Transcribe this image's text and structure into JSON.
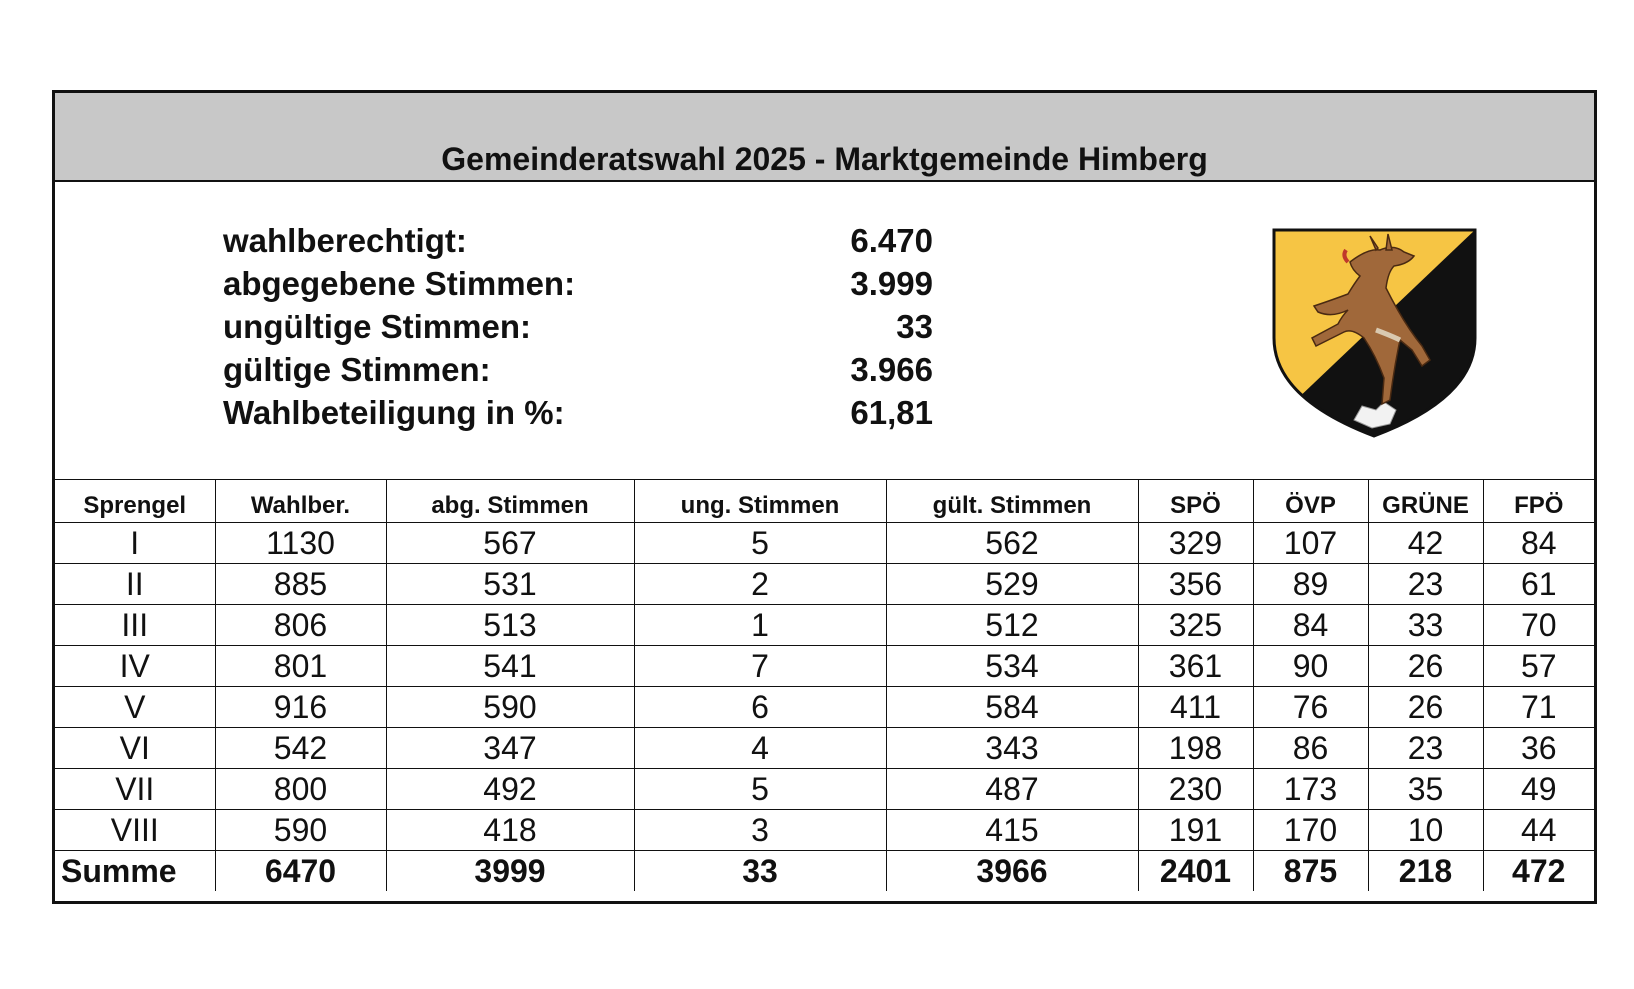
{
  "title": "Gemeinderatswahl 2025 -  Marktgemeinde Himberg",
  "summary": [
    {
      "label": "wahlberechtigt:",
      "value": "6.470"
    },
    {
      "label": "abgegebene Stimmen:",
      "value": "3.999"
    },
    {
      "label": "ungültige Stimmen:",
      "value": "33"
    },
    {
      "label": "gültige Stimmen:",
      "value": "3.966"
    },
    {
      "label": "Wahlbeteiligung in %:",
      "value": "61,81"
    }
  ],
  "crest": {
    "icon": "himberg-coat-of-arms-icon",
    "colors": {
      "field_top": "#f6c544",
      "field_bottom": "#111111",
      "animal": "#a0683a"
    }
  },
  "table": {
    "headers": [
      "Sprengel",
      "Wahlber.",
      "abg. Stimmen",
      "ung. Stimmen",
      "gült. Stimmen",
      "SPÖ",
      "ÖVP",
      "GRÜNE",
      "FPÖ"
    ],
    "rows": [
      [
        "I",
        "1130",
        "567",
        "5",
        "562",
        "329",
        "107",
        "42",
        "84"
      ],
      [
        "II",
        "885",
        "531",
        "2",
        "529",
        "356",
        "89",
        "23",
        "61"
      ],
      [
        "III",
        "806",
        "513",
        "1",
        "512",
        "325",
        "84",
        "33",
        "70"
      ],
      [
        "IV",
        "801",
        "541",
        "7",
        "534",
        "361",
        "90",
        "26",
        "57"
      ],
      [
        "V",
        "916",
        "590",
        "6",
        "584",
        "411",
        "76",
        "26",
        "71"
      ],
      [
        "VI",
        "542",
        "347",
        "4",
        "343",
        "198",
        "86",
        "23",
        "36"
      ],
      [
        "VII",
        "800",
        "492",
        "5",
        "487",
        "230",
        "173",
        "35",
        "49"
      ],
      [
        "VIII",
        "590",
        "418",
        "3",
        "415",
        "191",
        "170",
        "10",
        "44"
      ]
    ],
    "total": [
      "Summe",
      "6470",
      "3999",
      "33",
      "3966",
      "2401",
      "875",
      "218",
      "472"
    ]
  }
}
